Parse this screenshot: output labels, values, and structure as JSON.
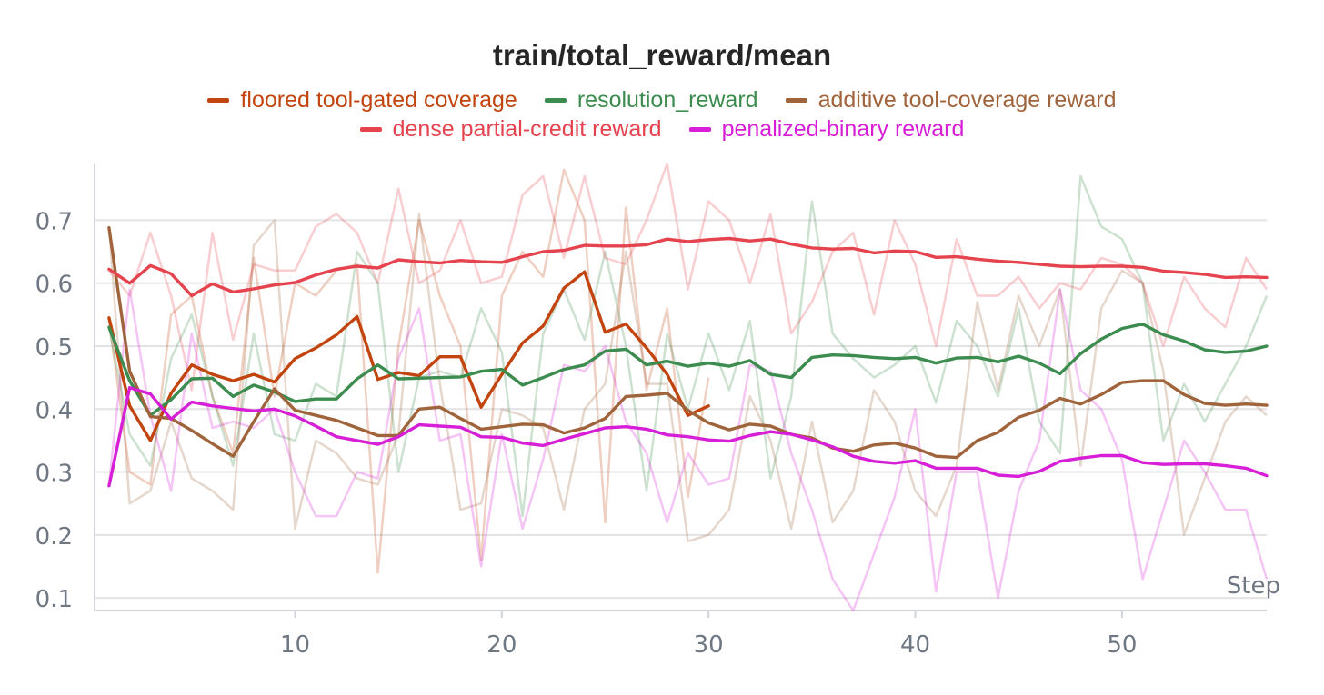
{
  "chart_data": {
    "type": "line",
    "title": "train/total_reward/mean",
    "xlabel": "Step",
    "ylabel": "",
    "xlim": [
      0.3,
      57
    ],
    "ylim": [
      0.08,
      0.79
    ],
    "xticks": [
      10,
      20,
      30,
      40,
      50
    ],
    "yticks": [
      0.1,
      0.2,
      0.3,
      0.4,
      0.5,
      0.6,
      0.7
    ],
    "grid": "horizontal",
    "legend": "top-center",
    "series": [
      {
        "name": "floored tool-gated coverage",
        "color": "#c2440e",
        "x": [
          1,
          2,
          3,
          4,
          5,
          6,
          7,
          8,
          9,
          10,
          11,
          12,
          13,
          14,
          15,
          16,
          17,
          18,
          19,
          20,
          21,
          22,
          23,
          24,
          25,
          26,
          27,
          28,
          29,
          30
        ],
        "smoothed": [
          0.545,
          0.405,
          0.35,
          0.425,
          0.47,
          0.455,
          0.445,
          0.455,
          0.443,
          0.48,
          0.497,
          0.518,
          0.547,
          0.447,
          0.458,
          0.453,
          0.483,
          0.483,
          0.403,
          0.455,
          0.505,
          0.532,
          0.592,
          0.618,
          0.522,
          0.535,
          0.497,
          0.455,
          0.39,
          0.405
        ],
        "raw": [
          0.54,
          0.3,
          0.28,
          0.55,
          0.58,
          0.42,
          0.33,
          0.64,
          0.42,
          0.6,
          0.58,
          0.62,
          0.63,
          0.14,
          0.5,
          0.7,
          0.58,
          0.5,
          0.16,
          0.58,
          0.65,
          0.61,
          0.78,
          0.7,
          0.22,
          0.72,
          0.43,
          0.56,
          0.26,
          0.45
        ]
      },
      {
        "name": "resolution_reward",
        "color": "#3d8c4f",
        "x": [
          1,
          2,
          3,
          4,
          5,
          6,
          7,
          8,
          9,
          10,
          11,
          12,
          13,
          14,
          15,
          16,
          17,
          18,
          19,
          20,
          21,
          22,
          23,
          24,
          25,
          26,
          27,
          28,
          29,
          30,
          31,
          32,
          33,
          34,
          35,
          36,
          37,
          38,
          39,
          40,
          41,
          42,
          43,
          44,
          45,
          46,
          47,
          48,
          49,
          50,
          51,
          52,
          53,
          54,
          55,
          56,
          57
        ],
        "smoothed": [
          0.53,
          0.445,
          0.39,
          0.415,
          0.448,
          0.449,
          0.42,
          0.438,
          0.427,
          0.412,
          0.416,
          0.416,
          0.448,
          0.47,
          0.448,
          0.449,
          0.45,
          0.451,
          0.46,
          0.463,
          0.438,
          0.45,
          0.463,
          0.47,
          0.492,
          0.495,
          0.47,
          0.476,
          0.468,
          0.473,
          0.468,
          0.477,
          0.455,
          0.45,
          0.482,
          0.486,
          0.485,
          0.482,
          0.48,
          0.482,
          0.473,
          0.481,
          0.482,
          0.475,
          0.484,
          0.473,
          0.456,
          0.488,
          0.511,
          0.528,
          0.535,
          0.518,
          0.508,
          0.494,
          0.49,
          0.492,
          0.5
        ],
        "raw": [
          0.53,
          0.36,
          0.31,
          0.48,
          0.55,
          0.42,
          0.31,
          0.52,
          0.36,
          0.35,
          0.44,
          0.42,
          0.65,
          0.6,
          0.3,
          0.45,
          0.46,
          0.45,
          0.56,
          0.49,
          0.23,
          0.52,
          0.59,
          0.51,
          0.65,
          0.5,
          0.27,
          0.52,
          0.4,
          0.52,
          0.43,
          0.54,
          0.29,
          0.42,
          0.73,
          0.52,
          0.48,
          0.45,
          0.47,
          0.5,
          0.41,
          0.54,
          0.5,
          0.42,
          0.56,
          0.38,
          0.33,
          0.77,
          0.69,
          0.67,
          0.6,
          0.35,
          0.44,
          0.38,
          0.44,
          0.5,
          0.58
        ]
      },
      {
        "name": "additive tool-coverage reward",
        "color": "#a0643c",
        "x": [
          1,
          2,
          3,
          4,
          5,
          6,
          7,
          8,
          9,
          10,
          11,
          12,
          13,
          14,
          15,
          16,
          17,
          18,
          19,
          20,
          21,
          22,
          23,
          24,
          25,
          26,
          27,
          28,
          29,
          30,
          31,
          32,
          33,
          34,
          35,
          36,
          37,
          38,
          39,
          40,
          41,
          42,
          43,
          44,
          45,
          46,
          47,
          48,
          49,
          50,
          51,
          52,
          53,
          54,
          55,
          56,
          57
        ],
        "smoothed": [
          0.688,
          0.46,
          0.388,
          0.385,
          0.366,
          0.345,
          0.325,
          0.38,
          0.432,
          0.398,
          0.39,
          0.382,
          0.37,
          0.358,
          0.358,
          0.4,
          0.403,
          0.385,
          0.368,
          0.372,
          0.376,
          0.375,
          0.362,
          0.37,
          0.385,
          0.42,
          0.422,
          0.425,
          0.398,
          0.378,
          0.367,
          0.376,
          0.373,
          0.36,
          0.354,
          0.338,
          0.333,
          0.343,
          0.346,
          0.338,
          0.325,
          0.323,
          0.35,
          0.363,
          0.387,
          0.398,
          0.417,
          0.408,
          0.423,
          0.442,
          0.445,
          0.445,
          0.423,
          0.409,
          0.406,
          0.408,
          0.406
        ],
        "raw": [
          0.69,
          0.25,
          0.27,
          0.38,
          0.29,
          0.27,
          0.24,
          0.66,
          0.7,
          0.21,
          0.35,
          0.33,
          0.29,
          0.28,
          0.36,
          0.71,
          0.44,
          0.24,
          0.25,
          0.4,
          0.39,
          0.37,
          0.24,
          0.4,
          0.44,
          0.65,
          0.44,
          0.44,
          0.19,
          0.2,
          0.24,
          0.42,
          0.35,
          0.21,
          0.38,
          0.22,
          0.27,
          0.43,
          0.38,
          0.27,
          0.23,
          0.31,
          0.57,
          0.43,
          0.58,
          0.5,
          0.59,
          0.31,
          0.56,
          0.62,
          0.6,
          0.46,
          0.2,
          0.29,
          0.38,
          0.42,
          0.39
        ]
      },
      {
        "name": "dense partial-credit reward",
        "color": "#e5434e",
        "x": [
          1,
          2,
          3,
          4,
          5,
          6,
          7,
          8,
          9,
          10,
          11,
          12,
          13,
          14,
          15,
          16,
          17,
          18,
          19,
          20,
          21,
          22,
          23,
          24,
          25,
          26,
          27,
          28,
          29,
          30,
          31,
          32,
          33,
          34,
          35,
          36,
          37,
          38,
          39,
          40,
          41,
          42,
          43,
          44,
          45,
          46,
          47,
          48,
          49,
          50,
          51,
          52,
          53,
          54,
          55,
          56,
          57
        ],
        "smoothed": [
          0.622,
          0.6,
          0.628,
          0.615,
          0.58,
          0.599,
          0.586,
          0.591,
          0.597,
          0.601,
          0.613,
          0.622,
          0.627,
          0.624,
          0.637,
          0.634,
          0.632,
          0.636,
          0.634,
          0.633,
          0.642,
          0.65,
          0.652,
          0.66,
          0.659,
          0.659,
          0.661,
          0.67,
          0.666,
          0.669,
          0.671,
          0.667,
          0.67,
          0.662,
          0.656,
          0.654,
          0.655,
          0.648,
          0.651,
          0.65,
          0.641,
          0.642,
          0.638,
          0.635,
          0.633,
          0.63,
          0.627,
          0.626,
          0.627,
          0.627,
          0.625,
          0.619,
          0.617,
          0.614,
          0.609,
          0.61,
          0.609
        ],
        "raw": [
          0.62,
          0.58,
          0.68,
          0.58,
          0.43,
          0.68,
          0.51,
          0.63,
          0.62,
          0.62,
          0.69,
          0.71,
          0.68,
          0.6,
          0.75,
          0.6,
          0.62,
          0.7,
          0.6,
          0.61,
          0.74,
          0.77,
          0.64,
          0.77,
          0.64,
          0.63,
          0.7,
          0.79,
          0.59,
          0.73,
          0.7,
          0.6,
          0.71,
          0.52,
          0.57,
          0.65,
          0.68,
          0.55,
          0.7,
          0.63,
          0.5,
          0.67,
          0.58,
          0.58,
          0.61,
          0.56,
          0.6,
          0.59,
          0.64,
          0.63,
          0.6,
          0.5,
          0.61,
          0.56,
          0.53,
          0.64,
          0.59
        ]
      },
      {
        "name": "penalized-binary reward",
        "color": "#d61fd6",
        "x": [
          1,
          2,
          3,
          4,
          5,
          6,
          7,
          8,
          9,
          10,
          11,
          12,
          13,
          14,
          15,
          16,
          17,
          18,
          19,
          20,
          21,
          22,
          23,
          24,
          25,
          26,
          27,
          28,
          29,
          30,
          31,
          32,
          33,
          34,
          35,
          36,
          37,
          38,
          39,
          40,
          41,
          42,
          43,
          44,
          45,
          46,
          47,
          48,
          49,
          50,
          51,
          52,
          53,
          54,
          55,
          56,
          57
        ],
        "smoothed": [
          0.278,
          0.434,
          0.424,
          0.384,
          0.411,
          0.405,
          0.401,
          0.397,
          0.4,
          0.389,
          0.373,
          0.356,
          0.35,
          0.344,
          0.356,
          0.375,
          0.373,
          0.371,
          0.356,
          0.355,
          0.346,
          0.342,
          0.352,
          0.361,
          0.37,
          0.372,
          0.368,
          0.359,
          0.356,
          0.351,
          0.349,
          0.358,
          0.364,
          0.36,
          0.351,
          0.34,
          0.325,
          0.317,
          0.314,
          0.318,
          0.306,
          0.306,
          0.306,
          0.295,
          0.293,
          0.301,
          0.317,
          0.322,
          0.326,
          0.326,
          0.315,
          0.312,
          0.313,
          0.313,
          0.31,
          0.306,
          0.294
        ],
        "raw": [
          0.28,
          0.59,
          0.39,
          0.27,
          0.52,
          0.37,
          0.38,
          0.37,
          0.4,
          0.3,
          0.23,
          0.23,
          0.3,
          0.29,
          0.48,
          0.56,
          0.35,
          0.36,
          0.15,
          0.36,
          0.21,
          0.32,
          0.47,
          0.46,
          0.5,
          0.38,
          0.33,
          0.22,
          0.33,
          0.28,
          0.29,
          0.47,
          0.46,
          0.33,
          0.24,
          0.13,
          0.08,
          0.17,
          0.26,
          0.4,
          0.11,
          0.3,
          0.3,
          0.1,
          0.27,
          0.35,
          0.59,
          0.43,
          0.4,
          0.32,
          0.13,
          0.24,
          0.35,
          0.3,
          0.24,
          0.24,
          0.13
        ]
      }
    ]
  }
}
